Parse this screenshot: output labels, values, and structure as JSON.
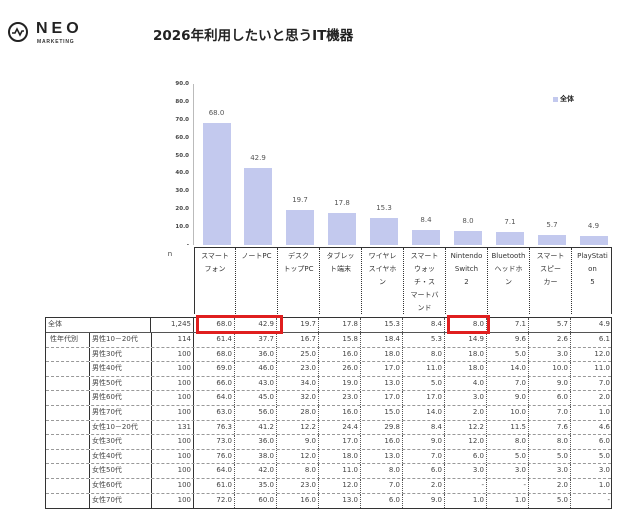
{
  "header": {
    "logo": {
      "brand": "NEO",
      "sub": "MARKETING",
      "icon": "wave-circle-icon"
    },
    "title": "2026年利用したいと思うIT機器"
  },
  "chart_data": {
    "type": "bar",
    "title": "2026年利用したいと思うIT機器",
    "xlabel": "",
    "ylabel": "",
    "ylim": [
      0,
      90
    ],
    "yticks": [
      "90.0",
      "80.0",
      "70.0",
      "60.0",
      "50.0",
      "40.0",
      "30.0",
      "20.0",
      "10.0",
      "-"
    ],
    "grid": false,
    "legend": {
      "position": "top-right",
      "entries": [
        "全体"
      ]
    },
    "categories": [
      "スマートフォン",
      "ノートPC",
      "デスクトップPC",
      "タブレット端末",
      "ワイヤレスイヤホン",
      "スマートウォッチ・スマートバンド",
      "Nintendo Switch 2",
      "Bluetoothヘッドホン",
      "スマートスピーカー",
      "PlayStation 5"
    ],
    "series": [
      {
        "name": "全体",
        "color": "#c3c9ee",
        "values": [
          68.0,
          42.9,
          19.7,
          17.8,
          15.3,
          8.4,
          8.0,
          7.1,
          5.7,
          4.9
        ],
        "labels": [
          "68.0",
          "42.9",
          "19.7",
          "17.8",
          "15.3",
          "8.4",
          "8.0",
          "7.1",
          "5.7",
          "4.9"
        ]
      }
    ]
  },
  "table": {
    "n_header": "n",
    "column_headers": [
      "スマート フォン",
      "ノートPC",
      "デスク トップPC",
      "タブレッ ト端末",
      "ワイヤレ スイヤホ ン",
      "スマート ウォッ チ・ス マートバ ンド",
      "Nintendo Switch 2",
      "Bluetooth ヘッドホ ン",
      "スマート スピー カー",
      "PlayStati on 5"
    ],
    "total_row": {
      "label": "全体",
      "n": "1,245",
      "values": [
        "68.0",
        "42.9",
        "19.7",
        "17.8",
        "15.3",
        "8.4",
        "8.0",
        "7.1",
        "5.7",
        "4.9"
      ]
    },
    "group_label": "性年代別",
    "rows": [
      {
        "label": "男性10－20代",
        "n": "114",
        "values": [
          "61.4",
          "37.7",
          "16.7",
          "15.8",
          "18.4",
          "5.3",
          "14.9",
          "9.6",
          "2.6",
          "6.1"
        ]
      },
      {
        "label": "男性30代",
        "n": "100",
        "values": [
          "68.0",
          "36.0",
          "25.0",
          "16.0",
          "18.0",
          "8.0",
          "18.0",
          "5.0",
          "3.0",
          "12.0"
        ]
      },
      {
        "label": "男性40代",
        "n": "100",
        "values": [
          "69.0",
          "46.0",
          "23.0",
          "26.0",
          "17.0",
          "11.0",
          "18.0",
          "14.0",
          "10.0",
          "11.0"
        ]
      },
      {
        "label": "男性50代",
        "n": "100",
        "values": [
          "66.0",
          "43.0",
          "34.0",
          "19.0",
          "13.0",
          "5.0",
          "4.0",
          "7.0",
          "9.0",
          "7.0"
        ]
      },
      {
        "label": "男性60代",
        "n": "100",
        "values": [
          "64.0",
          "45.0",
          "32.0",
          "23.0",
          "17.0",
          "17.0",
          "3.0",
          "9.0",
          "6.0",
          "2.0"
        ]
      },
      {
        "label": "男性70代",
        "n": "100",
        "values": [
          "63.0",
          "56.0",
          "28.0",
          "16.0",
          "15.0",
          "14.0",
          "2.0",
          "10.0",
          "7.0",
          "1.0"
        ]
      },
      {
        "label": "女性10－20代",
        "n": "131",
        "values": [
          "76.3",
          "41.2",
          "12.2",
          "24.4",
          "29.8",
          "8.4",
          "12.2",
          "11.5",
          "7.6",
          "4.6"
        ]
      },
      {
        "label": "女性30代",
        "n": "100",
        "values": [
          "73.0",
          "36.0",
          "9.0",
          "17.0",
          "16.0",
          "9.0",
          "12.0",
          "8.0",
          "8.0",
          "6.0"
        ]
      },
      {
        "label": "女性40代",
        "n": "100",
        "values": [
          "76.0",
          "38.0",
          "12.0",
          "18.0",
          "13.0",
          "7.0",
          "6.0",
          "5.0",
          "5.0",
          "5.0"
        ]
      },
      {
        "label": "女性50代",
        "n": "100",
        "values": [
          "64.0",
          "42.0",
          "8.0",
          "11.0",
          "8.0",
          "6.0",
          "3.0",
          "3.0",
          "3.0",
          "3.0"
        ]
      },
      {
        "label": "女性60代",
        "n": "100",
        "values": [
          "61.0",
          "35.0",
          "23.0",
          "12.0",
          "7.0",
          "2.0",
          "-",
          "-",
          "2.0",
          "1.0"
        ]
      },
      {
        "label": "女性70代",
        "n": "100",
        "values": [
          "72.0",
          "60.0",
          "16.0",
          "13.0",
          "6.0",
          "9.0",
          "1.0",
          "1.0",
          "5.0",
          "-"
        ]
      }
    ],
    "highlight_color": "#e01f1f"
  }
}
